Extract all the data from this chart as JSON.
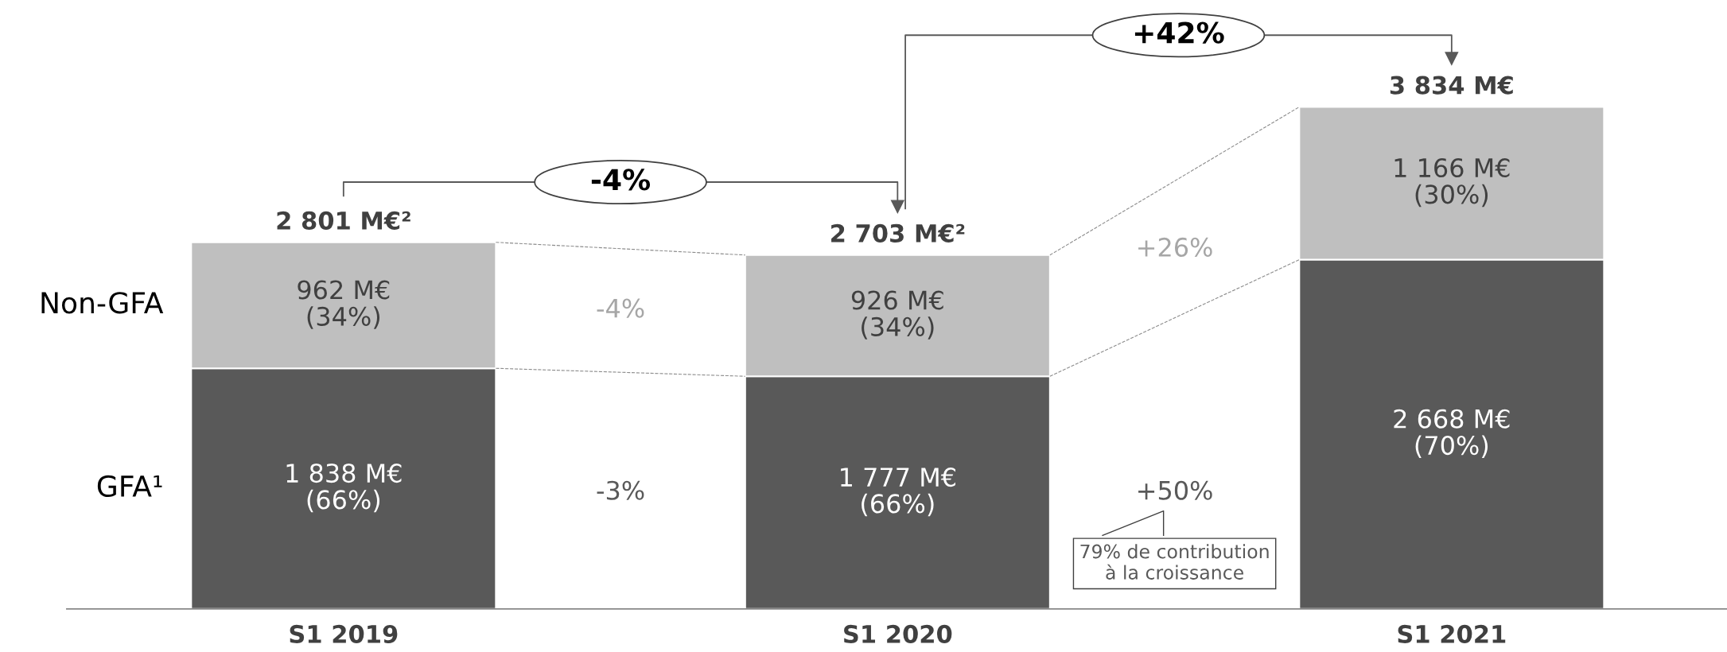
{
  "chart_data": {
    "type": "bar",
    "stacked": true,
    "tick_labels": "x",
    "categories": [
      "S1 2019",
      "S1 2020",
      "S1 2021"
    ],
    "series": [
      {
        "name": "GFA¹",
        "color": "#595959",
        "values": [
          1838,
          1777,
          2668
        ],
        "value_labels": [
          "1 838 M€\n(66%)",
          "1 777 M€\n(66%)",
          "2 668 M€\n(70%)"
        ]
      },
      {
        "name": "Non-GFA",
        "color": "#bfbfbf",
        "values": [
          962,
          926,
          1166
        ],
        "value_labels": [
          "962 M€\n(34%)",
          "926 M€\n(34%)",
          "1 166 M€\n(30%)"
        ]
      }
    ],
    "totals": [
      "2 801 M€²",
      "2 703 M€²",
      "3 834 M€"
    ],
    "annotations": [
      "-4%",
      "-3%",
      "+26%",
      "+50%",
      "79% de contribution\nà la croissance",
      "-4%",
      "+42%"
    ]
  }
}
